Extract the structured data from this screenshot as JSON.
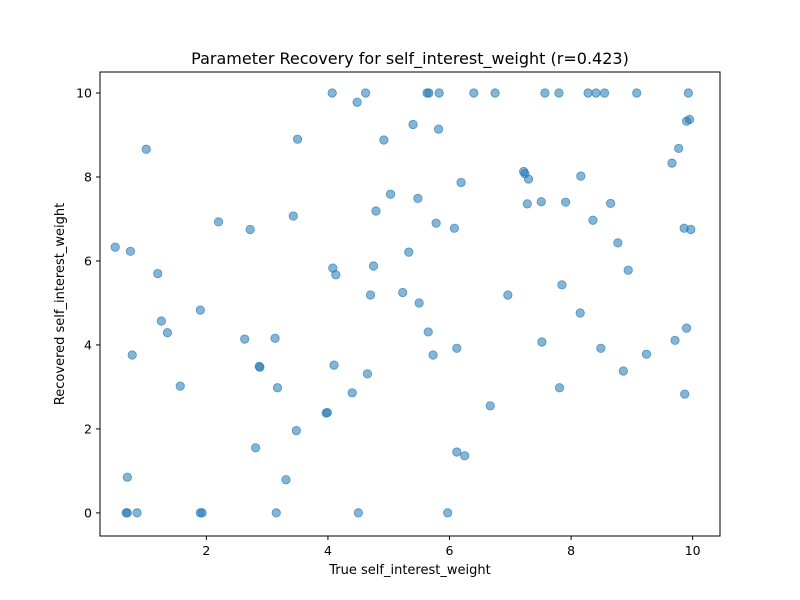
{
  "chart_data": {
    "type": "scatter",
    "title": "Parameter Recovery for self_interest_weight (r=0.423)",
    "xlabel": "True self_interest_weight",
    "ylabel": "Recovered self_interest_weight",
    "xlim": [
      0.25,
      10.45
    ],
    "ylim": [
      -0.55,
      10.5
    ],
    "xticks": [
      2,
      4,
      6,
      8,
      10
    ],
    "yticks": [
      0,
      2,
      4,
      6,
      8,
      10
    ],
    "grid": false,
    "legend": "none",
    "marker_color": "#1f77b4",
    "marker_alpha": 0.55,
    "points": [
      [
        0.5,
        6.33
      ],
      [
        0.75,
        6.23
      ],
      [
        1.01,
        8.66
      ],
      [
        0.78,
        3.76
      ],
      [
        0.7,
        0.85
      ],
      [
        0.68,
        0.0
      ],
      [
        0.7,
        0.0
      ],
      [
        0.86,
        0.0
      ],
      [
        1.2,
        5.7
      ],
      [
        1.26,
        4.57
      ],
      [
        1.36,
        4.29
      ],
      [
        1.57,
        3.02
      ],
      [
        1.9,
        4.83
      ],
      [
        1.9,
        0.0
      ],
      [
        1.93,
        0.0
      ],
      [
        2.2,
        6.93
      ],
      [
        2.63,
        4.14
      ],
      [
        2.72,
        6.75
      ],
      [
        2.81,
        1.55
      ],
      [
        2.87,
        3.49
      ],
      [
        2.88,
        3.47
      ],
      [
        3.13,
        4.16
      ],
      [
        3.17,
        2.98
      ],
      [
        3.15,
        0.0
      ],
      [
        3.31,
        0.79
      ],
      [
        3.43,
        7.07
      ],
      [
        3.48,
        1.96
      ],
      [
        3.5,
        8.9
      ],
      [
        3.97,
        2.38
      ],
      [
        3.99,
        2.39
      ],
      [
        4.07,
        10.0
      ],
      [
        4.08,
        5.83
      ],
      [
        4.13,
        5.67
      ],
      [
        4.1,
        3.52
      ],
      [
        4.4,
        2.86
      ],
      [
        4.48,
        9.78
      ],
      [
        4.5,
        0.0
      ],
      [
        4.62,
        10.0
      ],
      [
        4.65,
        3.31
      ],
      [
        4.7,
        5.19
      ],
      [
        4.75,
        5.88
      ],
      [
        4.79,
        7.19
      ],
      [
        4.92,
        8.88
      ],
      [
        5.03,
        7.59
      ],
      [
        5.23,
        5.25
      ],
      [
        5.33,
        6.21
      ],
      [
        5.4,
        9.25
      ],
      [
        5.48,
        7.49
      ],
      [
        5.5,
        5.0
      ],
      [
        5.63,
        10.0
      ],
      [
        5.66,
        10.0
      ],
      [
        5.65,
        4.31
      ],
      [
        5.73,
        3.76
      ],
      [
        5.78,
        6.9
      ],
      [
        5.82,
        9.14
      ],
      [
        5.83,
        10.0
      ],
      [
        5.97,
        0.0
      ],
      [
        6.08,
        6.78
      ],
      [
        6.12,
        3.92
      ],
      [
        6.12,
        1.45
      ],
      [
        6.19,
        7.87
      ],
      [
        6.25,
        1.36
      ],
      [
        6.4,
        10.0
      ],
      [
        6.67,
        2.55
      ],
      [
        6.75,
        10.0
      ],
      [
        6.96,
        5.19
      ],
      [
        7.22,
        8.13
      ],
      [
        7.24,
        8.08
      ],
      [
        7.28,
        7.36
      ],
      [
        7.3,
        7.95
      ],
      [
        7.51,
        7.41
      ],
      [
        7.52,
        4.07
      ],
      [
        7.57,
        10.0
      ],
      [
        7.8,
        10.0
      ],
      [
        7.81,
        2.98
      ],
      [
        7.85,
        5.43
      ],
      [
        7.91,
        7.4
      ],
      [
        8.15,
        4.76
      ],
      [
        8.16,
        8.02
      ],
      [
        8.28,
        10.0
      ],
      [
        8.36,
        6.97
      ],
      [
        8.41,
        10.0
      ],
      [
        8.49,
        3.92
      ],
      [
        8.55,
        10.0
      ],
      [
        8.65,
        7.37
      ],
      [
        8.77,
        6.43
      ],
      [
        8.86,
        3.38
      ],
      [
        8.94,
        5.78
      ],
      [
        9.08,
        10.0
      ],
      [
        9.24,
        3.78
      ],
      [
        9.66,
        8.33
      ],
      [
        9.71,
        4.11
      ],
      [
        9.77,
        8.68
      ],
      [
        9.86,
        6.78
      ],
      [
        9.87,
        2.83
      ],
      [
        9.9,
        9.33
      ],
      [
        9.9,
        4.4
      ],
      [
        9.93,
        10.0
      ],
      [
        9.95,
        9.37
      ],
      [
        9.97,
        6.75
      ]
    ]
  }
}
